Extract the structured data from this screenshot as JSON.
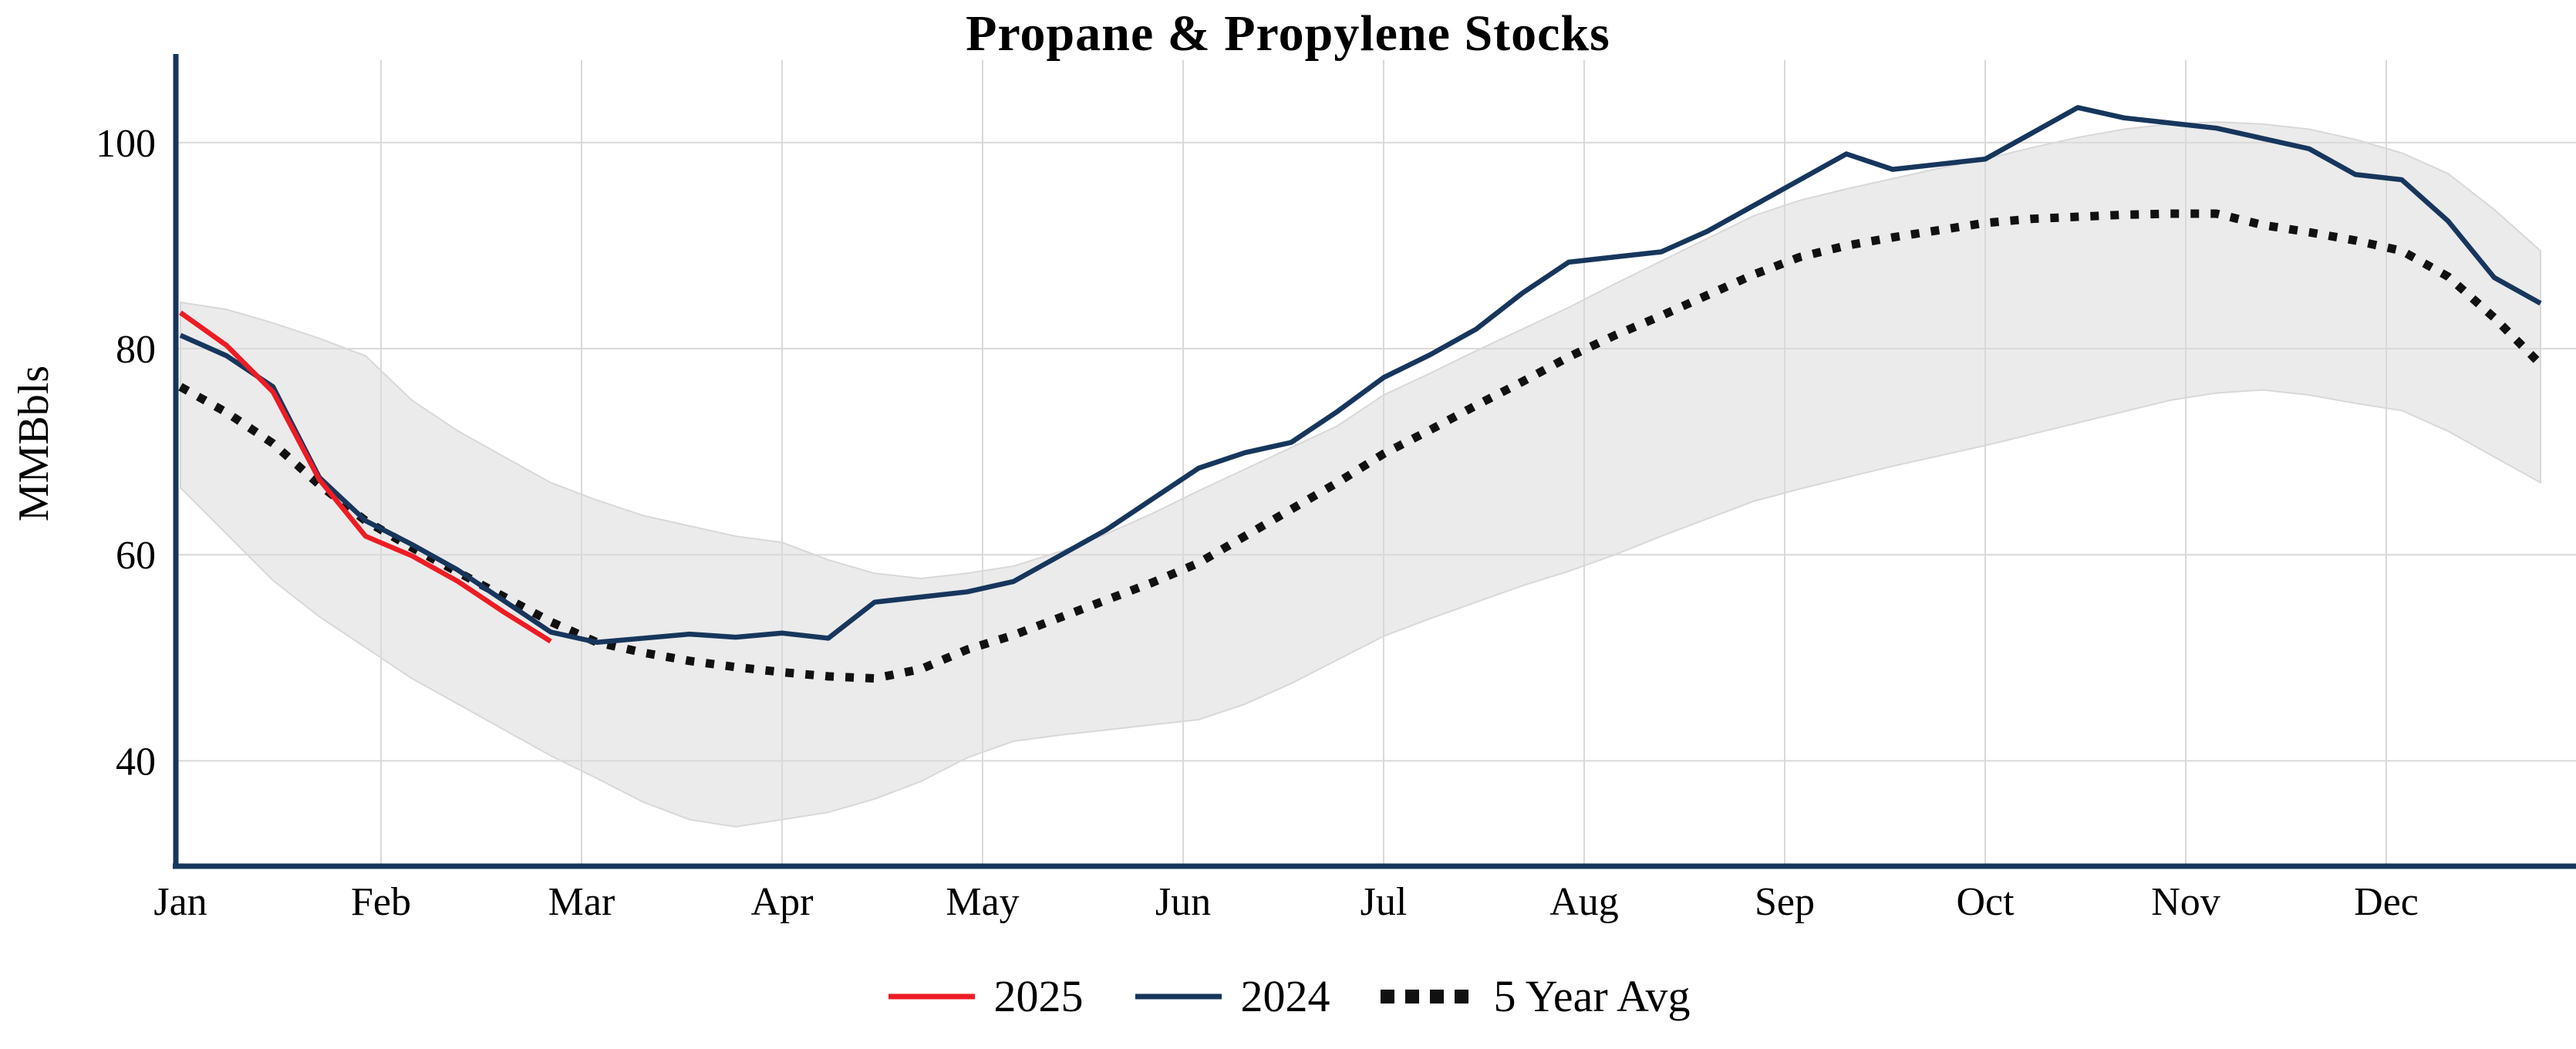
{
  "title": "Propane & Propylene Stocks",
  "chart_data": {
    "type": "line",
    "title": "Propane & Propylene Stocks",
    "xlabel": "",
    "ylabel": "MMBbls",
    "x_unit": "week of year",
    "x_tick_labels": [
      "Jan",
      "Feb",
      "Mar",
      "Apr",
      "May",
      "Jun",
      "Jul",
      "Aug",
      "Sep",
      "Oct",
      "Nov",
      "Dec"
    ],
    "yticks": [
      40,
      60,
      80,
      100
    ],
    "ylim": [
      30,
      108
    ],
    "grid": true,
    "legend_position": "bottom-center",
    "band": {
      "name": "5 year range",
      "color": "#EBEBEB",
      "upper": [
        84.5,
        83.8,
        82.5,
        81.0,
        79.3,
        75.0,
        72.0,
        69.5,
        67.0,
        65.3,
        63.8,
        62.8,
        61.8,
        61.2,
        59.5,
        58.2,
        57.7,
        58.2,
        58.9,
        60.3,
        62.0,
        64.0,
        66.2,
        68.3,
        70.4,
        72.5,
        75.5,
        77.6,
        79.8,
        81.9,
        84.0,
        86.3,
        88.5,
        90.7,
        92.9,
        94.4,
        95.5,
        96.5,
        97.5,
        98.4,
        99.5,
        100.5,
        101.3,
        101.8,
        102.0,
        101.8,
        101.3,
        100.3,
        99.0,
        97.0,
        93.5,
        89.5
      ],
      "lower": [
        66.5,
        62.0,
        57.5,
        54.0,
        51.0,
        48.0,
        45.5,
        43.0,
        40.5,
        38.3,
        36.0,
        34.3,
        33.6,
        34.3,
        35.0,
        36.3,
        38.0,
        40.3,
        41.9,
        42.5,
        43.0,
        43.5,
        44.0,
        45.5,
        47.5,
        49.8,
        52.1,
        53.8,
        55.4,
        57.0,
        58.4,
        60.0,
        61.8,
        63.5,
        65.2,
        66.4,
        67.5,
        68.6,
        69.6,
        70.6,
        71.7,
        72.8,
        73.9,
        75.0,
        75.7,
        76.0,
        75.5,
        74.7,
        74.0,
        72.0,
        69.5,
        67.0
      ]
    },
    "series": [
      {
        "name": "2025",
        "color": "#ED1C24",
        "style": "solid",
        "values": [
          83.5,
          80.3,
          75.8,
          67.3,
          61.8,
          59.9,
          57.4,
          54.4,
          51.6
        ]
      },
      {
        "name": "2024",
        "color": "#17365D",
        "style": "solid",
        "values": [
          81.3,
          79.3,
          76.3,
          67.5,
          63.3,
          61.0,
          58.5,
          55.5,
          52.5,
          51.5,
          51.9,
          52.3,
          52.0,
          52.4,
          51.9,
          55.4,
          55.9,
          56.4,
          57.4,
          59.9,
          62.4,
          65.4,
          68.4,
          69.9,
          70.9,
          73.9,
          77.2,
          79.4,
          81.9,
          85.4,
          88.4,
          88.9,
          89.4,
          91.4,
          93.9,
          96.4,
          98.9,
          97.4,
          97.9,
          98.4,
          100.9,
          103.4,
          102.4,
          101.9,
          101.4,
          100.4,
          99.4,
          96.9,
          96.4,
          92.4,
          86.9,
          84.4
        ]
      },
      {
        "name": "5 Year Avg",
        "color": "#111111",
        "style": "dotted",
        "values": [
          76.3,
          73.8,
          70.8,
          66.8,
          63.3,
          60.7,
          58.3,
          55.9,
          53.5,
          51.5,
          50.5,
          49.7,
          49.1,
          48.6,
          48.2,
          48.0,
          48.9,
          50.8,
          52.2,
          53.9,
          55.6,
          57.3,
          59.2,
          61.8,
          64.4,
          67.0,
          69.8,
          72.1,
          74.5,
          76.8,
          79.2,
          81.3,
          83.2,
          85.2,
          87.2,
          88.9,
          90.0,
          90.8,
          91.5,
          92.2,
          92.6,
          92.8,
          93.0,
          93.1,
          93.1,
          92.0,
          91.3,
          90.5,
          89.5,
          87.0,
          83.0,
          78.5
        ]
      }
    ],
    "colors": {
      "grid": "#D9D9D9",
      "axis": "#17365D",
      "band_edge": "#D8D8D8",
      "text": "#000000"
    }
  }
}
